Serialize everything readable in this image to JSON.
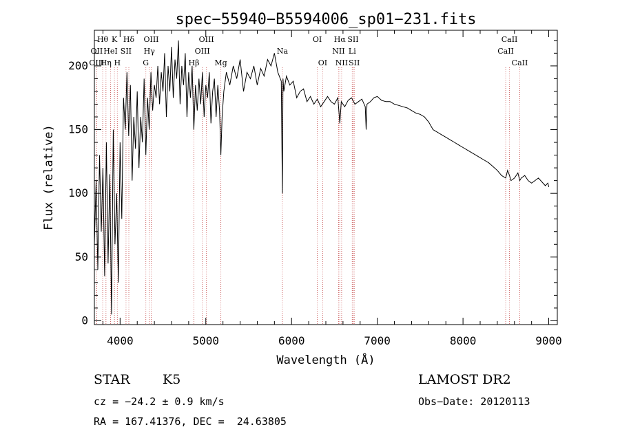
{
  "chart_data": {
    "type": "line",
    "title": "spec−55940−B5594006_sp01−231.fits",
    "xlabel": "Wavelength (Å)",
    "ylabel": "Flux (relative)",
    "xlim": [
      3700,
      9100
    ],
    "ylim": [
      -3,
      228
    ],
    "xticks": [
      4000,
      5000,
      6000,
      7000,
      8000,
      9000
    ],
    "yticks": [
      0,
      50,
      100,
      150,
      200
    ],
    "grid": false,
    "series": [
      {
        "x": [
          3700,
          3720,
          3740,
          3760,
          3780,
          3800,
          3820,
          3840,
          3860,
          3880,
          3900,
          3920,
          3940,
          3960,
          3980,
          4000,
          4020,
          4040,
          4060,
          4080,
          4100,
          4120,
          4140,
          4160,
          4180,
          4200,
          4220,
          4240,
          4260,
          4280,
          4300,
          4320,
          4340,
          4360,
          4380,
          4400,
          4420,
          4440,
          4460,
          4480,
          4500,
          4520,
          4540,
          4560,
          4580,
          4600,
          4620,
          4640,
          4660,
          4680,
          4700,
          4720,
          4740,
          4760,
          4780,
          4800,
          4820,
          4840,
          4860,
          4880,
          4900,
          4920,
          4940,
          4960,
          4980,
          5000,
          5020,
          5040,
          5060,
          5080,
          5100,
          5120,
          5140,
          5160,
          5175,
          5190,
          5210,
          5240,
          5280,
          5320,
          5360,
          5400,
          5440,
          5480,
          5520,
          5560,
          5600,
          5640,
          5680,
          5720,
          5760,
          5800,
          5840,
          5880,
          5893,
          5900,
          5910,
          5940,
          5980,
          6020,
          6060,
          6100,
          6140,
          6180,
          6220,
          6260,
          6300,
          6340,
          6380,
          6420,
          6460,
          6500,
          6540,
          6563,
          6580,
          6620,
          6660,
          6700,
          6740,
          6780,
          6820,
          6860,
          6870,
          6880,
          6920,
          6960,
          7000,
          7050,
          7100,
          7150,
          7200,
          7250,
          7300,
          7350,
          7400,
          7450,
          7500,
          7550,
          7600,
          7650,
          7700,
          7750,
          7800,
          7850,
          7900,
          7950,
          8000,
          8050,
          8100,
          8150,
          8200,
          8250,
          8300,
          8350,
          8400,
          8450,
          8498,
          8520,
          8542,
          8560,
          8600,
          8640,
          8662,
          8680,
          8720,
          8760,
          8800,
          8840,
          8880,
          8920,
          8960,
          8990,
          9000
        ],
        "y": [
          60,
          110,
          40,
          130,
          70,
          120,
          35,
          140,
          45,
          115,
          5,
          150,
          60,
          100,
          30,
          140,
          80,
          175,
          150,
          195,
          145,
          185,
          110,
          160,
          135,
          180,
          120,
          160,
          140,
          190,
          130,
          175,
          150,
          195,
          165,
          185,
          175,
          200,
          170,
          195,
          180,
          210,
          160,
          200,
          180,
          215,
          175,
          205,
          190,
          220,
          170,
          200,
          185,
          210,
          160,
          195,
          175,
          200,
          150,
          185,
          165,
          190,
          170,
          195,
          160,
          185,
          175,
          195,
          155,
          180,
          190,
          160,
          185,
          165,
          130,
          160,
          180,
          195,
          185,
          200,
          190,
          205,
          180,
          195,
          190,
          200,
          185,
          198,
          192,
          205,
          200,
          210,
          195,
          188,
          100,
          190,
          180,
          192,
          185,
          188,
          175,
          180,
          182,
          172,
          176,
          170,
          174,
          168,
          172,
          176,
          172,
          170,
          175,
          155,
          172,
          168,
          173,
          175,
          170,
          172,
          174,
          168,
          150,
          170,
          172,
          175,
          176,
          173,
          172,
          172,
          170,
          169,
          168,
          167,
          165,
          163,
          162,
          160,
          156,
          150,
          148,
          146,
          144,
          142,
          140,
          138,
          136,
          134,
          132,
          130,
          128,
          126,
          124,
          121,
          118,
          114,
          112,
          118,
          114,
          110,
          112,
          116,
          110,
          112,
          114,
          110,
          108,
          110,
          112,
          109,
          106,
          108,
          105
        ]
      }
    ],
    "lines": [
      {
        "label": "Hθ",
        "x": 3797,
        "row": 0
      },
      {
        "label": "K",
        "x": 3934,
        "row": 0
      },
      {
        "label": "Hδ",
        "x": 4102,
        "row": 0
      },
      {
        "label": "OIII",
        "x": 4363,
        "row": 0
      },
      {
        "label": "OIII",
        "x": 5007,
        "row": 0
      },
      {
        "label": "OI",
        "x": 6300,
        "row": 0
      },
      {
        "label": "Hα",
        "x": 6563,
        "row": 0
      },
      {
        "label": "SII",
        "x": 6717,
        "row": 0
      },
      {
        "label": "CaII",
        "x": 8542,
        "row": 0
      },
      {
        "label": "OII",
        "x": 3727,
        "row": 1
      },
      {
        "label": "HeI",
        "x": 3889,
        "row": 1
      },
      {
        "label": "SII",
        "x": 4069,
        "row": 1
      },
      {
        "label": "Hγ",
        "x": 4341,
        "row": 1
      },
      {
        "label": "OIII",
        "x": 4959,
        "row": 1
      },
      {
        "label": "Na",
        "x": 5893,
        "row": 1
      },
      {
        "label": "NII",
        "x": 6548,
        "row": 1
      },
      {
        "label": "Li",
        "x": 6708,
        "row": 1
      },
      {
        "label": "CaII",
        "x": 8498,
        "row": 1
      },
      {
        "label": "OIII",
        "x": 3727,
        "row": 2
      },
      {
        "label": "Hη",
        "x": 3835,
        "row": 2
      },
      {
        "label": "H",
        "x": 3968,
        "row": 2
      },
      {
        "label": "G",
        "x": 4300,
        "row": 2
      },
      {
        "label": "Hβ",
        "x": 4861,
        "row": 2
      },
      {
        "label": "Mg",
        "x": 5175,
        "row": 2
      },
      {
        "label": "OI",
        "x": 6363,
        "row": 2
      },
      {
        "label": "NII",
        "x": 6584,
        "row": 2
      },
      {
        "label": "SII",
        "x": 6731,
        "row": 2
      },
      {
        "label": "CaII",
        "x": 8662,
        "row": 2
      }
    ]
  },
  "info": {
    "object_class": "STAR",
    "subclass": "K5",
    "survey": "LAMOST DR2",
    "cz": "cz = −24.2 ± 0.9 km/s",
    "obs_date": "Obs−Date: 20120113",
    "radec": "RA = 167.41376, DEC =  24.63805"
  }
}
